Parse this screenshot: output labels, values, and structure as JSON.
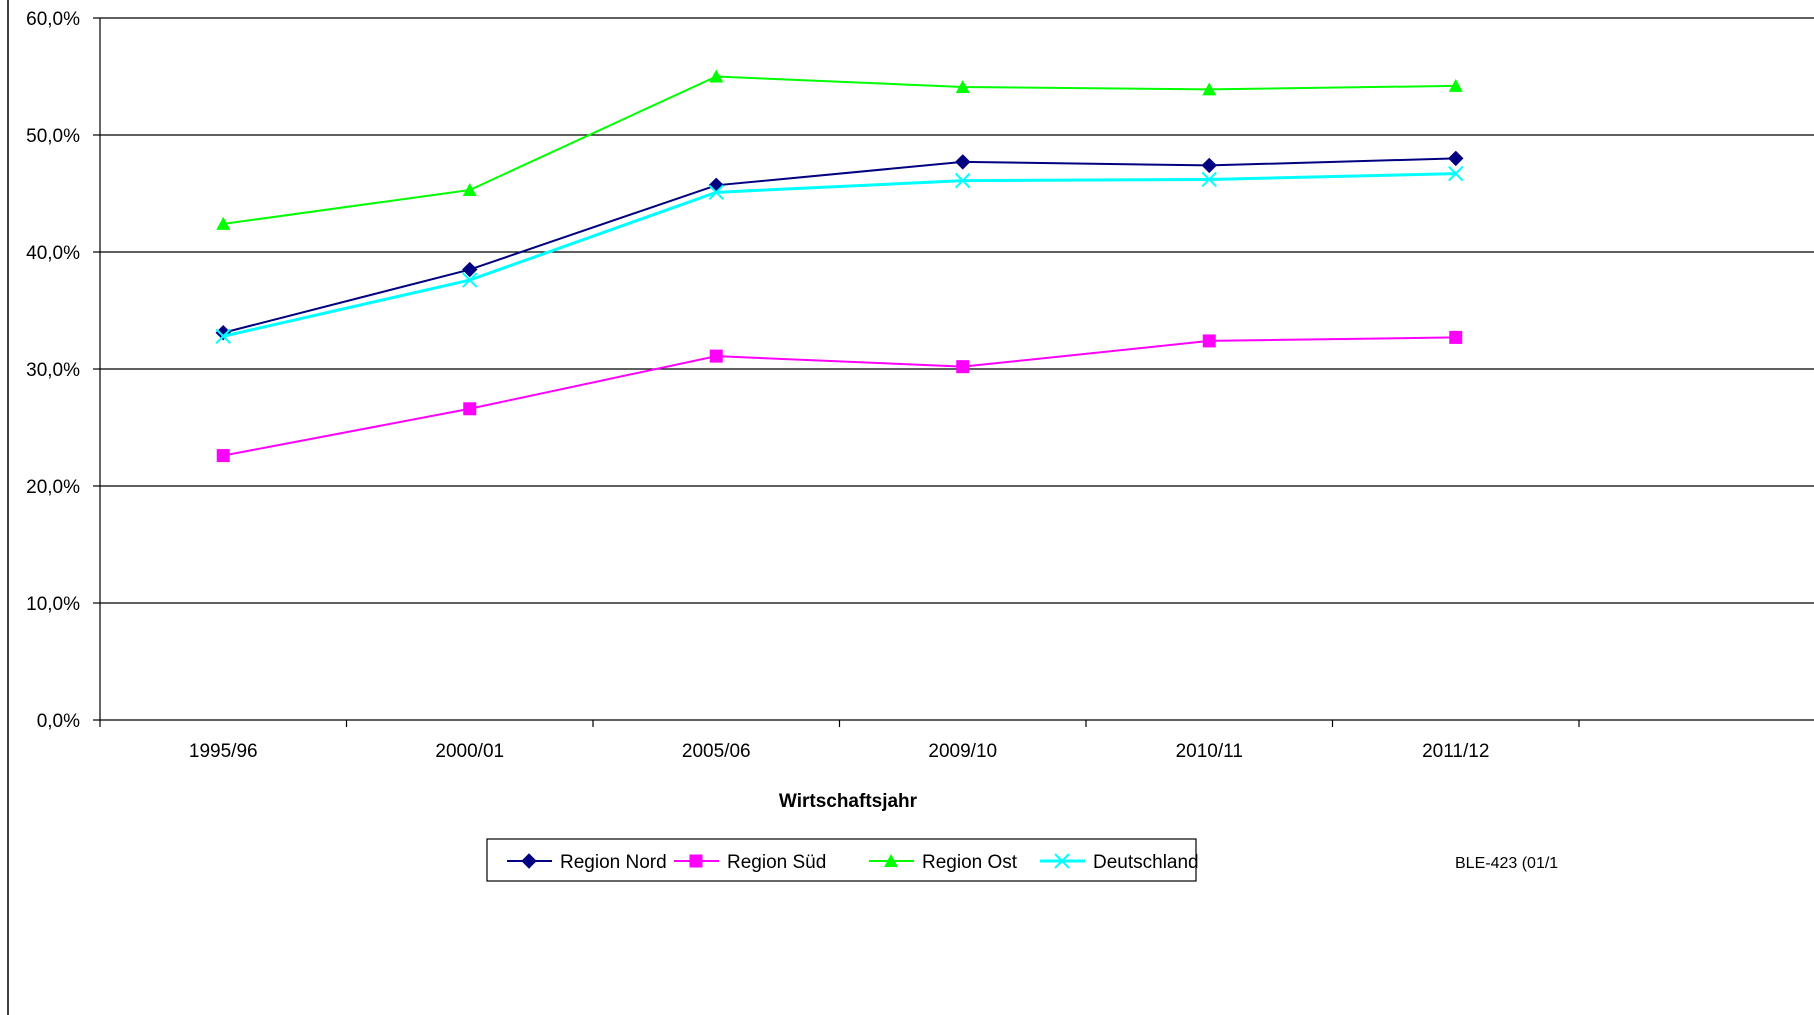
{
  "chart_data": {
    "type": "line",
    "categories": [
      "1995/96",
      "2000/01",
      "2005/06",
      "2009/10",
      "2010/11",
      "2011/12"
    ],
    "series": [
      {
        "name": "Region Nord",
        "values": [
          33.1,
          38.5,
          45.7,
          47.7,
          47.4,
          48.0
        ],
        "color": "#000080",
        "marker": "diamond"
      },
      {
        "name": "Region Süd",
        "values": [
          22.6,
          26.6,
          31.1,
          30.2,
          32.4,
          32.7
        ],
        "color": "#ff00ff",
        "marker": "square"
      },
      {
        "name": "Region Ost",
        "values": [
          42.4,
          45.3,
          55.0,
          54.1,
          53.9,
          54.2
        ],
        "color": "#00ff00",
        "marker": "triangle"
      },
      {
        "name": "Deutschland",
        "values": [
          32.8,
          37.6,
          45.1,
          46.1,
          46.2,
          46.7
        ],
        "color": "#00ffff",
        "marker": "x"
      }
    ],
    "yticks": [
      "0,0%",
      "10,0%",
      "20,0%",
      "30,0%",
      "40,0%",
      "50,0%",
      "60,0%"
    ],
    "ylim": [
      0,
      60
    ],
    "xlabel": "Wirtschaftsjahr",
    "ylabel": "",
    "title": "",
    "grid": true,
    "legend_position": "bottom"
  },
  "footer_note": "BLE-423 (01/1"
}
